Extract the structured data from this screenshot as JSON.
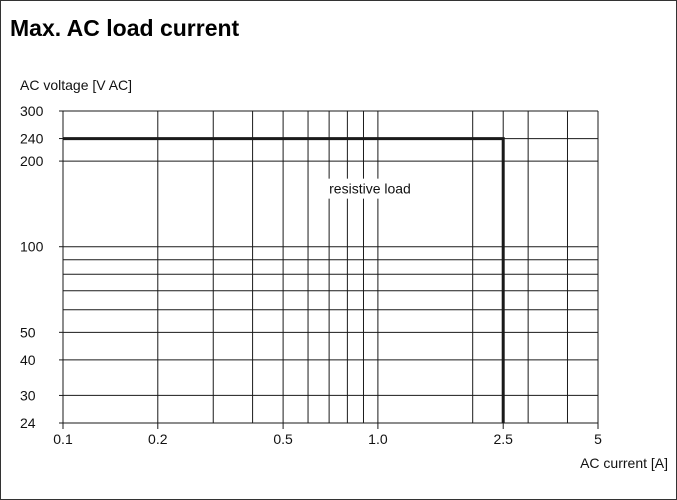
{
  "chart_data": {
    "type": "line",
    "title": "Max. AC load current",
    "ylabel": "AC voltage  [V AC]",
    "xlabel": "AC current [A]",
    "x_scale": "log",
    "y_scale": "log",
    "xlim": [
      0.1,
      5
    ],
    "ylim": [
      24,
      300
    ],
    "x_ticks": [
      {
        "value": 0.1,
        "label": "0.1"
      },
      {
        "value": 0.2,
        "label": "0.2"
      },
      {
        "value": 0.5,
        "label": "0.5"
      },
      {
        "value": 1.0,
        "label": "1.0"
      },
      {
        "value": 2.5,
        "label": "2.5"
      },
      {
        "value": 5,
        "label": "5"
      }
    ],
    "y_ticks": [
      {
        "value": 24,
        "label": "24"
      },
      {
        "value": 30,
        "label": "30"
      },
      {
        "value": 40,
        "label": "40"
      },
      {
        "value": 50,
        "label": "50"
      },
      {
        "value": 100,
        "label": "100"
      },
      {
        "value": 200,
        "label": "200"
      },
      {
        "value": 240,
        "label": "240"
      },
      {
        "value": 300,
        "label": "300"
      }
    ],
    "x_grid": [
      0.1,
      0.2,
      0.3,
      0.4,
      0.5,
      0.6,
      0.7,
      0.8,
      0.9,
      1.0,
      2,
      2.5,
      3,
      4,
      5
    ],
    "y_grid": [
      24,
      30,
      40,
      50,
      60,
      70,
      80,
      90,
      100,
      200,
      240,
      300
    ],
    "grid": true,
    "series": [
      {
        "x": [
          0.1,
          2.5,
          2.5
        ],
        "y": [
          240,
          240,
          24
        ]
      }
    ],
    "annotations": [
      {
        "text": "resistive load",
        "x": 0.69,
        "y": 160
      }
    ],
    "colors": {
      "line": "#1a1a1a",
      "grid": "#1a1a1a",
      "axis": "#1a1a1a"
    }
  }
}
